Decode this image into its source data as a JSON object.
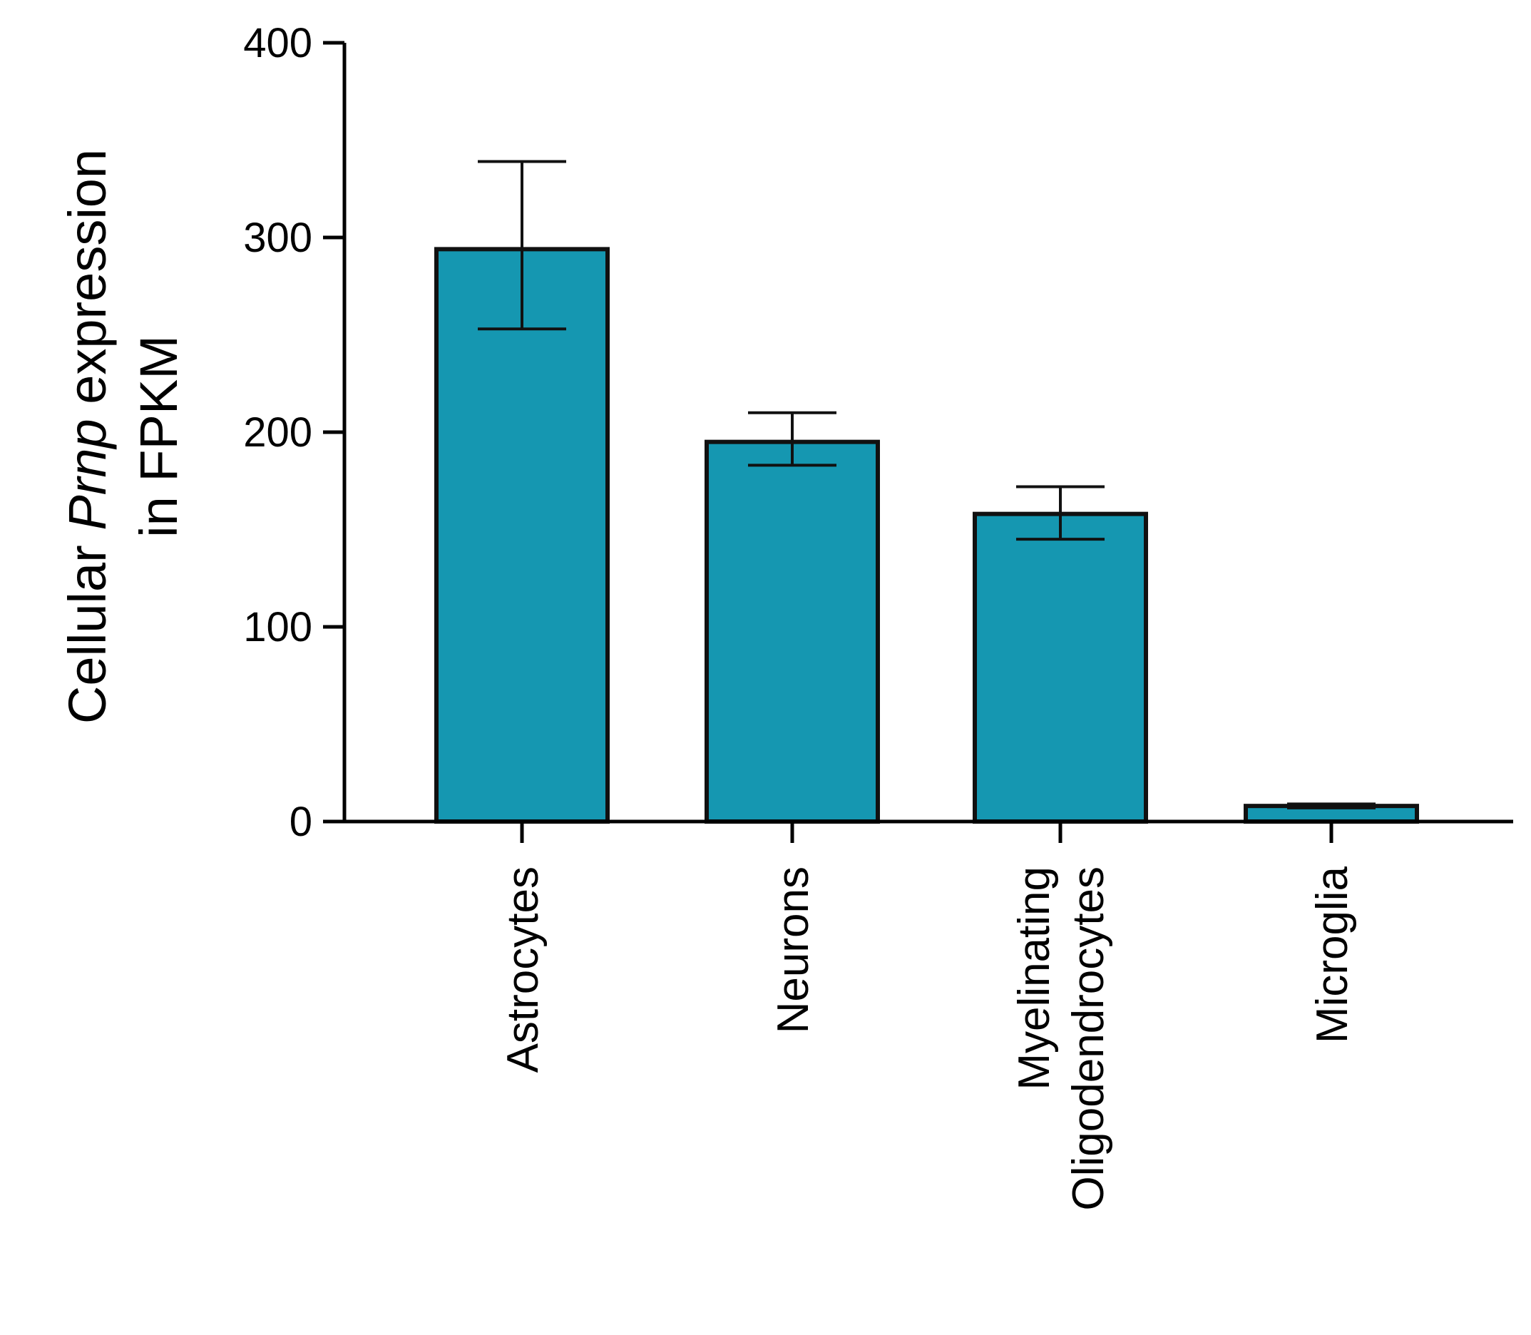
{
  "chart_data": {
    "type": "bar",
    "categories": [
      "Astrocytes",
      "Neurons",
      "Myelinating Oligodendrocytes",
      "Microglia"
    ],
    "category_lines": [
      [
        "Astrocytes"
      ],
      [
        "Neurons"
      ],
      [
        "Myelinating",
        "Oligodendrocytes"
      ],
      [
        "Microglia"
      ]
    ],
    "values": [
      294,
      195,
      158,
      8
    ],
    "error_upper": [
      339,
      210,
      172,
      9
    ],
    "error_lower": [
      253,
      183,
      145,
      7
    ],
    "title": "",
    "xlabel": "",
    "ylabel": "Cellular Prnp expression in FPKM",
    "ylabel_lines": [
      [
        {
          "text": "Cellular ",
          "italic": false
        },
        {
          "text": "Prnp",
          "italic": true
        },
        {
          "text": " expression",
          "italic": false
        }
      ],
      [
        {
          "text": "in FPKM",
          "italic": false
        }
      ]
    ],
    "ylim": [
      0,
      400
    ],
    "yticks": [
      0,
      100,
      200,
      300,
      400
    ],
    "grid": false,
    "legend": "none",
    "bar_color": "#1597b1",
    "edge_color": "#111111"
  }
}
